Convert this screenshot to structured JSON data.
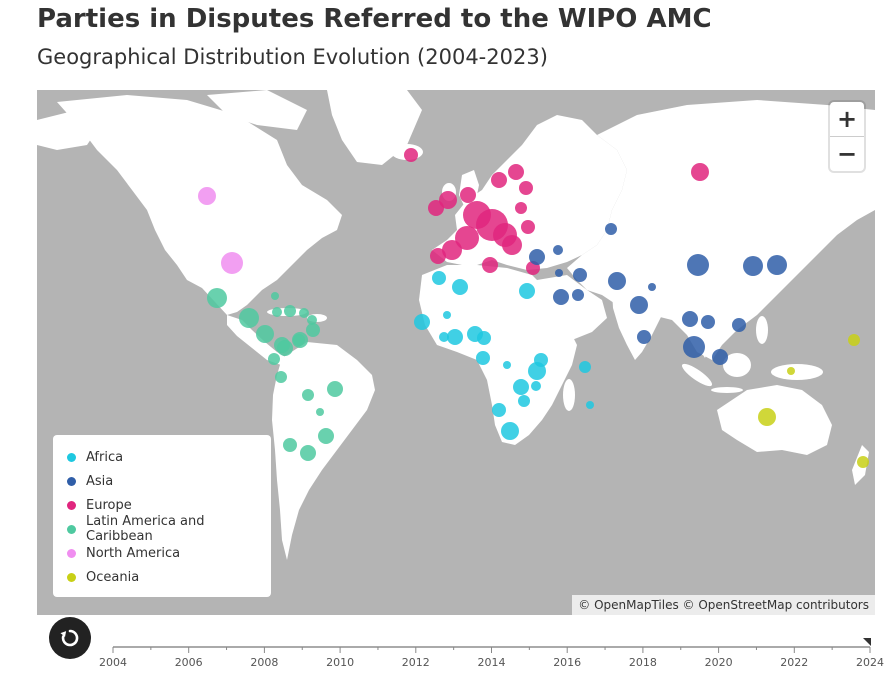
{
  "header": {
    "title": "Parties in Disputes Referred to the WIPO AMC",
    "subtitle": "Geographical Distribution Evolution (2004-2023)"
  },
  "map": {
    "zoom_in_label": "+",
    "zoom_out_label": "−",
    "attribution": "© OpenMapTiles © OpenStreetMap contributors",
    "ocean_color": "#b4b4b4",
    "land_color": "#ffffff"
  },
  "legend": {
    "items": [
      {
        "label": "Africa",
        "color": "#1ec8e0"
      },
      {
        "label": "Asia",
        "color": "#2f5ea8"
      },
      {
        "label": "Europe",
        "color": "#e0267e"
      },
      {
        "label": "Latin America and Caribbean",
        "color": "#4fc9a0"
      },
      {
        "label": "North America",
        "color": "#f08ef0"
      },
      {
        "label": "Oceania",
        "color": "#c8d016"
      }
    ]
  },
  "timeline": {
    "ticks": [
      "2004",
      "2006",
      "2008",
      "2010",
      "2012",
      "2014",
      "2016",
      "2018",
      "2020",
      "2022",
      "2024"
    ],
    "current_year": 2024,
    "replay_icon": "replay-icon"
  }
}
